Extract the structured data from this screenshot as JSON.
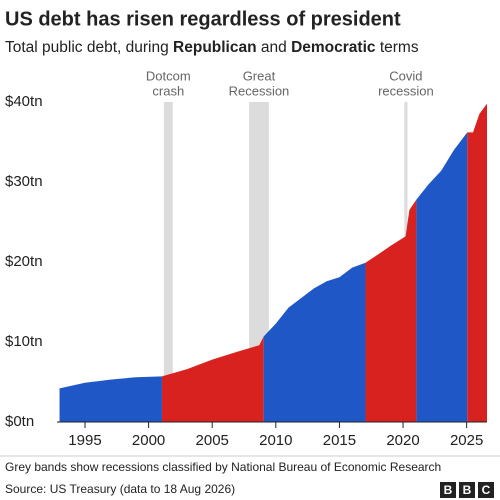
{
  "chart_data": {
    "type": "area",
    "title": "US debt has risen regardless of president",
    "subtitle_prefix": "Total public debt, during",
    "subtitle_join": "and",
    "subtitle_suffix": "terms",
    "x": [
      1993.0,
      1995,
      1997,
      1999,
      2001.05,
      2003,
      2005,
      2007,
      2008.7,
      2009.05,
      2010,
      2011,
      2012,
      2013,
      2014,
      2015,
      2016,
      2017.05,
      2018,
      2019,
      2020.2,
      2020.5,
      2021.05,
      2022,
      2023,
      2024,
      2025.05,
      2025.5,
      2026,
      2026.6
    ],
    "series": [
      {
        "name": "Republican",
        "color": "#d8221f",
        "values": [
          null,
          null,
          null,
          null,
          5.7,
          6.6,
          7.8,
          8.8,
          9.6,
          10.7,
          null,
          null,
          null,
          null,
          null,
          null,
          null,
          19.9,
          20.9,
          22.0,
          23.2,
          26.5,
          27.8,
          null,
          null,
          null,
          36.2,
          36.2,
          38.5,
          39.8
        ]
      },
      {
        "name": "Democratic",
        "color": "#1f57c6",
        "values": [
          4.2,
          4.9,
          5.3,
          5.6,
          5.7,
          null,
          null,
          null,
          null,
          10.7,
          12.3,
          14.3,
          15.5,
          16.7,
          17.6,
          18.1,
          19.3,
          19.9,
          null,
          null,
          null,
          null,
          27.8,
          29.7,
          31.4,
          34.0,
          36.2,
          null,
          null,
          null
        ]
      }
    ],
    "recessions": [
      {
        "start": 2001.2,
        "end": 2001.9,
        "label": [
          "Dotcom",
          "crash"
        ]
      },
      {
        "start": 2007.9,
        "end": 2009.45,
        "label": [
          "Great",
          "Recession"
        ]
      },
      {
        "start": 2020.1,
        "end": 2020.35,
        "label": [
          "Covid",
          "recession"
        ]
      }
    ],
    "recession_color": "#dcdcdc",
    "xlim": [
      1992.8,
      2026.6
    ],
    "xticks": [
      1995,
      2000,
      2005,
      2010,
      2015,
      2020,
      2025
    ],
    "ylim": [
      0,
      40
    ],
    "yticks": [
      {
        "value": 0,
        "label": "$0tn"
      },
      {
        "value": 10,
        "label": "$10tn"
      },
      {
        "value": 20,
        "label": "$20tn"
      },
      {
        "value": 30,
        "label": "$30tn"
      },
      {
        "value": 40,
        "label": "$40tn"
      }
    ],
    "grid": false,
    "footnote": "Grey bands show recessions classified by National Bureau of Economic Research",
    "source": "Source: US Treasury (data to 18 Aug 2026)",
    "logo": [
      "B",
      "B",
      "C"
    ]
  }
}
